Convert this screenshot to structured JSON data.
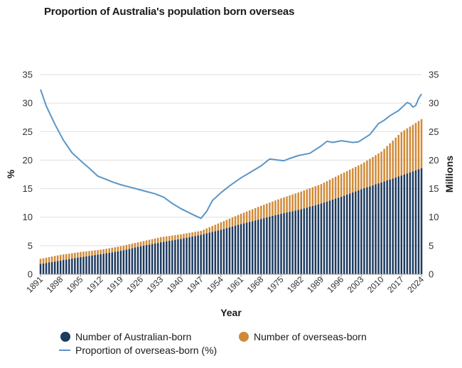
{
  "colors": {
    "australian": "#1d3a5f",
    "overseas": "#d08a37",
    "proportion": "#5b95c6",
    "grid": "#dedede"
  },
  "chart_data": {
    "type": "bar",
    "title": "Proportion of Australia's population born overseas",
    "xlabel": "Year",
    "ylabel_left": "%",
    "ylabel_right": "Millions",
    "ylim_left": [
      0,
      35
    ],
    "ylim_right": [
      0,
      35
    ],
    "yticks": [
      0,
      5,
      10,
      15,
      20,
      25,
      30,
      35
    ],
    "xtick_labels": [
      "1891",
      "1898",
      "1905",
      "1912",
      "1919",
      "1926",
      "1933",
      "1940",
      "1947",
      "1954",
      "1961",
      "1968",
      "1975",
      "1982",
      "1989",
      "1996",
      "2003",
      "2010",
      "2017",
      "2024"
    ],
    "grid": true,
    "legend_position": "bottom",
    "stacked": true,
    "x_start": 1891,
    "x_end": 2024,
    "series": [
      {
        "name": "Number of Australian-born",
        "kind": "bar",
        "anchors": [
          [
            1891,
            1.8
          ],
          [
            1898,
            2.4
          ],
          [
            1905,
            3.0
          ],
          [
            1912,
            3.5
          ],
          [
            1919,
            4.1
          ],
          [
            1926,
            4.9
          ],
          [
            1933,
            5.6
          ],
          [
            1940,
            6.2
          ],
          [
            1947,
            6.9
          ],
          [
            1954,
            7.8
          ],
          [
            1961,
            8.8
          ],
          [
            1968,
            9.7
          ],
          [
            1975,
            10.6
          ],
          [
            1982,
            11.4
          ],
          [
            1989,
            12.4
          ],
          [
            1996,
            13.6
          ],
          [
            2003,
            14.9
          ],
          [
            2010,
            16.1
          ],
          [
            2017,
            17.3
          ],
          [
            2024,
            18.6
          ]
        ]
      },
      {
        "name": "Number of overseas-born",
        "kind": "bar",
        "anchors": [
          [
            1891,
            0.9
          ],
          [
            1898,
            1.0
          ],
          [
            1905,
            0.9
          ],
          [
            1912,
            0.8
          ],
          [
            1919,
            0.8
          ],
          [
            1926,
            0.8
          ],
          [
            1933,
            0.9
          ],
          [
            1940,
            0.8
          ],
          [
            1947,
            0.7
          ],
          [
            1954,
            1.3
          ],
          [
            1961,
            1.8
          ],
          [
            1968,
            2.3
          ],
          [
            1975,
            2.7
          ],
          [
            1982,
            3.1
          ],
          [
            1989,
            3.4
          ],
          [
            1996,
            4.0
          ],
          [
            2003,
            4.4
          ],
          [
            2010,
            5.4
          ],
          [
            2017,
            7.6
          ],
          [
            2024,
            8.6
          ]
        ]
      },
      {
        "name": "Proportion of overseas-born (%)",
        "kind": "line",
        "points": [
          [
            1891,
            32.4
          ],
          [
            1893,
            29.5
          ],
          [
            1896,
            26.3
          ],
          [
            1899,
            23.5
          ],
          [
            1902,
            21.3
          ],
          [
            1905,
            19.9
          ],
          [
            1908,
            18.6
          ],
          [
            1911,
            17.2
          ],
          [
            1913,
            16.8
          ],
          [
            1916,
            16.2
          ],
          [
            1919,
            15.7
          ],
          [
            1922,
            15.3
          ],
          [
            1925,
            14.9
          ],
          [
            1928,
            14.5
          ],
          [
            1931,
            14.1
          ],
          [
            1934,
            13.5
          ],
          [
            1937,
            12.4
          ],
          [
            1940,
            11.5
          ],
          [
            1944,
            10.5
          ],
          [
            1947,
            9.8
          ],
          [
            1949,
            11.0
          ],
          [
            1951,
            12.9
          ],
          [
            1954,
            14.3
          ],
          [
            1957,
            15.5
          ],
          [
            1961,
            16.9
          ],
          [
            1964,
            17.8
          ],
          [
            1968,
            19.0
          ],
          [
            1971,
            20.2
          ],
          [
            1974,
            20.0
          ],
          [
            1976,
            19.9
          ],
          [
            1978,
            20.3
          ],
          [
            1981,
            20.8
          ],
          [
            1985,
            21.2
          ],
          [
            1989,
            22.5
          ],
          [
            1991,
            23.3
          ],
          [
            1993,
            23.1
          ],
          [
            1996,
            23.4
          ],
          [
            2000,
            23.1
          ],
          [
            2002,
            23.2
          ],
          [
            2006,
            24.5
          ],
          [
            2009,
            26.4
          ],
          [
            2011,
            27.0
          ],
          [
            2013,
            27.8
          ],
          [
            2016,
            28.7
          ],
          [
            2019,
            30.1
          ],
          [
            2020,
            29.9
          ],
          [
            2021,
            29.3
          ],
          [
            2022,
            29.6
          ],
          [
            2023,
            30.8
          ],
          [
            2024,
            31.6
          ]
        ]
      }
    ]
  }
}
